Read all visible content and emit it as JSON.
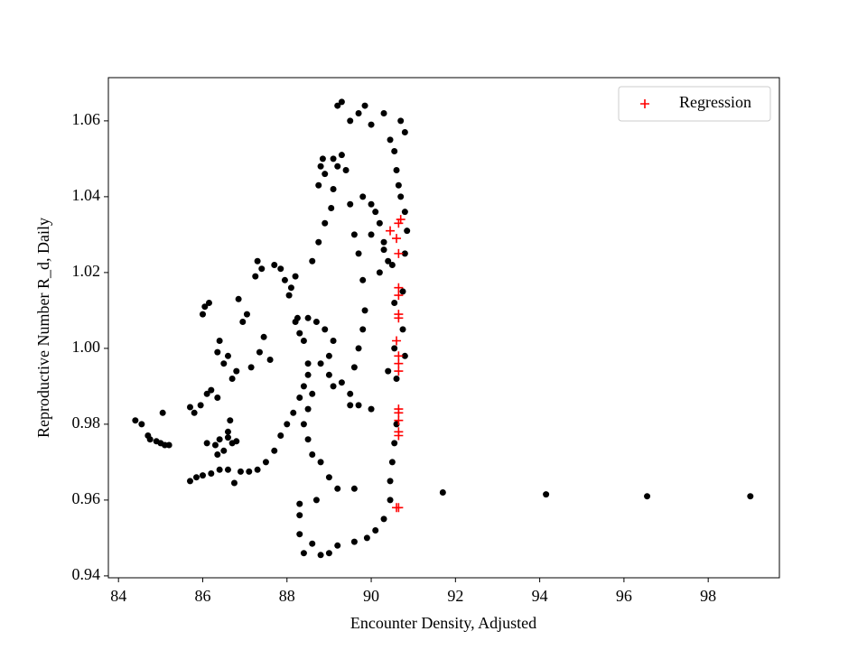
{
  "chart_data": {
    "type": "scatter",
    "xlabel": "Encounter Density, Adjusted",
    "ylabel": "Reproductive Number R_d, Daily",
    "xlim": [
      83.76,
      99.69
    ],
    "ylim": [
      0.9395,
      1.0714
    ],
    "xticks": [
      84,
      86,
      88,
      90,
      92,
      94,
      96,
      98
    ],
    "yticks": [
      {
        "value": 0.94,
        "label": "0.94"
      },
      {
        "value": 0.96,
        "label": "0.96"
      },
      {
        "value": 0.98,
        "label": "0.98"
      },
      {
        "value": 1.0,
        "label": "1.00"
      },
      {
        "value": 1.02,
        "label": "1.02"
      },
      {
        "value": 1.04,
        "label": "1.04"
      },
      {
        "value": 1.06,
        "label": "1.06"
      }
    ],
    "legend_loc": "upper right",
    "series": [
      {
        "color": "#000000",
        "marker": "o",
        "x": [
          91.7,
          94.15,
          96.55,
          99.0,
          84.4,
          84.55,
          84.7,
          84.75,
          84.9,
          85.0,
          85.1,
          85.2,
          85.05,
          85.7,
          85.8,
          85.95,
          86.1,
          86.2,
          86.35,
          85.7,
          85.85,
          86.0,
          86.2,
          86.4,
          86.6,
          86.75,
          86.9,
          87.1,
          87.3,
          87.5,
          87.7,
          87.85,
          88.0,
          88.15,
          88.3,
          88.4,
          88.5,
          86.1,
          86.3,
          86.4,
          86.5,
          86.6,
          86.7,
          86.8,
          86.65,
          86.6,
          86.35,
          86.0,
          86.05,
          86.15,
          86.35,
          86.4,
          86.5,
          86.6,
          86.7,
          86.8,
          86.85,
          86.95,
          87.05,
          87.15,
          87.25,
          87.3,
          87.4,
          87.35,
          87.45,
          87.6,
          87.7,
          87.85,
          87.95,
          88.05,
          88.1,
          88.2,
          88.25,
          88.3,
          88.4,
          88.5,
          88.6,
          88.75,
          88.9,
          89.05,
          89.1,
          88.9,
          88.8,
          88.75,
          88.85,
          89.1,
          89.3,
          89.4,
          88.2,
          88.5,
          88.7,
          88.9,
          89.1,
          89.0,
          88.8,
          88.6,
          88.5,
          88.4,
          88.5,
          88.6,
          88.8,
          89.0,
          89.2,
          89.6,
          88.3,
          88.3,
          88.4,
          88.6,
          88.8,
          89.0,
          89.2,
          89.6,
          89.9,
          90.1,
          90.3,
          90.45,
          90.45,
          90.5,
          90.55,
          90.6,
          90.0,
          89.7,
          89.5,
          89.3,
          89.1,
          89.0,
          88.7,
          88.3,
          89.2,
          89.3,
          89.5,
          89.7,
          89.85,
          90.0,
          90.3,
          90.45,
          90.55,
          90.6,
          90.65,
          90.7,
          90.8,
          90.7,
          90.8,
          90.85,
          90.8,
          90.75,
          90.75,
          90.8,
          90.1,
          90.2,
          90.3,
          90.4,
          90.0,
          89.8,
          89.5,
          89.2,
          89.6,
          89.7,
          89.8,
          89.85,
          89.8,
          89.7,
          89.6,
          89.5,
          90.0,
          90.2,
          90.3,
          90.5,
          90.55,
          90.55,
          90.6,
          90.4
        ],
        "values": [
          0.962,
          0.9615,
          0.961,
          0.961,
          0.981,
          0.98,
          0.977,
          0.976,
          0.9755,
          0.975,
          0.9745,
          0.9745,
          0.983,
          0.9845,
          0.983,
          0.985,
          0.988,
          0.989,
          0.987,
          0.965,
          0.966,
          0.9665,
          0.967,
          0.968,
          0.968,
          0.9645,
          0.9675,
          0.9675,
          0.968,
          0.97,
          0.973,
          0.977,
          0.98,
          0.983,
          0.987,
          0.99,
          0.993,
          0.975,
          0.9745,
          0.976,
          0.973,
          0.978,
          0.975,
          0.9755,
          0.981,
          0.9765,
          0.972,
          1.009,
          1.011,
          1.012,
          0.999,
          1.002,
          0.996,
          0.998,
          0.992,
          0.994,
          1.013,
          1.007,
          1.009,
          0.995,
          1.019,
          1.023,
          1.021,
          0.999,
          1.003,
          0.997,
          1.022,
          1.021,
          1.018,
          1.014,
          1.016,
          1.019,
          1.008,
          1.004,
          1.002,
          0.996,
          1.023,
          1.028,
          1.033,
          1.037,
          1.042,
          1.046,
          1.048,
          1.043,
          1.05,
          1.05,
          1.051,
          1.047,
          1.007,
          1.008,
          1.007,
          1.005,
          1.002,
          0.998,
          0.996,
          0.988,
          0.984,
          0.98,
          0.976,
          0.972,
          0.97,
          0.966,
          0.963,
          0.963,
          0.956,
          0.951,
          0.946,
          0.9485,
          0.9455,
          0.946,
          0.948,
          0.949,
          0.95,
          0.952,
          0.955,
          0.96,
          0.965,
          0.97,
          0.975,
          0.98,
          0.984,
          0.985,
          0.988,
          0.991,
          0.99,
          0.993,
          0.96,
          0.959,
          1.064,
          1.065,
          1.06,
          1.062,
          1.064,
          1.059,
          1.062,
          1.055,
          1.052,
          1.047,
          1.043,
          1.04,
          1.036,
          1.06,
          1.057,
          1.031,
          1.025,
          1.015,
          1.005,
          0.998,
          1.036,
          1.033,
          1.028,
          1.023,
          1.038,
          1.04,
          1.038,
          1.048,
          1.03,
          1.025,
          1.018,
          1.01,
          1.005,
          1.0,
          0.995,
          0.985,
          1.03,
          1.02,
          1.026,
          1.022,
          1.012,
          1.0,
          0.992,
          0.994
        ]
      },
      {
        "name": "Regression",
        "color": "#ff0000",
        "marker": "+",
        "x": [
          90.7,
          90.65,
          90.45,
          90.6,
          90.65,
          90.65,
          90.65,
          90.65,
          90.65,
          90.6,
          90.65,
          90.65,
          90.65,
          90.65,
          90.65,
          90.65,
          90.65,
          90.65,
          90.65,
          90.6
        ],
        "values": [
          1.034,
          1.033,
          1.031,
          1.029,
          1.025,
          1.016,
          1.014,
          1.009,
          1.008,
          1.002,
          0.998,
          0.996,
          0.994,
          0.984,
          0.983,
          0.981,
          0.978,
          0.977,
          0.958,
          0.958
        ]
      }
    ]
  }
}
